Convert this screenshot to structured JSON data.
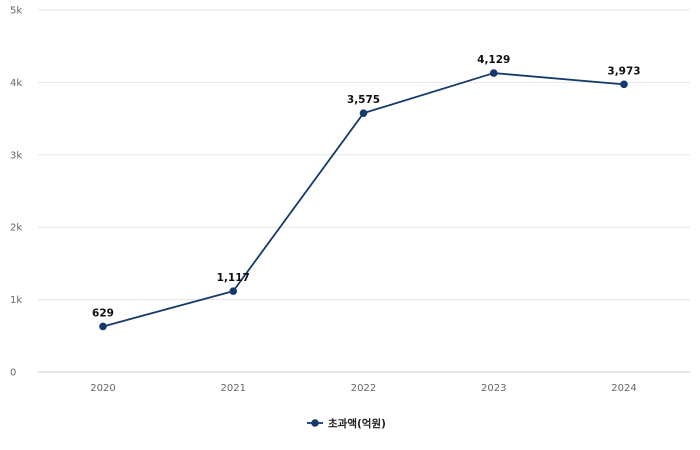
{
  "chart_data": {
    "type": "line",
    "title": "",
    "xlabel": "",
    "ylabel": "",
    "categories": [
      "2020",
      "2021",
      "2022",
      "2023",
      "2024"
    ],
    "series": [
      {
        "name": "초과액(억원)",
        "values": [
          629,
          1117,
          3575,
          4129,
          3973
        ],
        "labels": [
          "629",
          "1,117",
          "3,575",
          "4,129",
          "3,973"
        ],
        "color": "#16396b"
      }
    ],
    "ylim": [
      0,
      5000
    ],
    "yticks": [
      0,
      1000,
      2000,
      3000,
      4000,
      5000
    ],
    "ytick_labels": [
      "0",
      "1k",
      "2k",
      "3k",
      "4k",
      "5k"
    ],
    "grid": true,
    "legend_position": "bottom-center",
    "colors": {
      "grid": "#e6e6e6",
      "axis": "#cccccc",
      "line": "#16396b"
    }
  }
}
